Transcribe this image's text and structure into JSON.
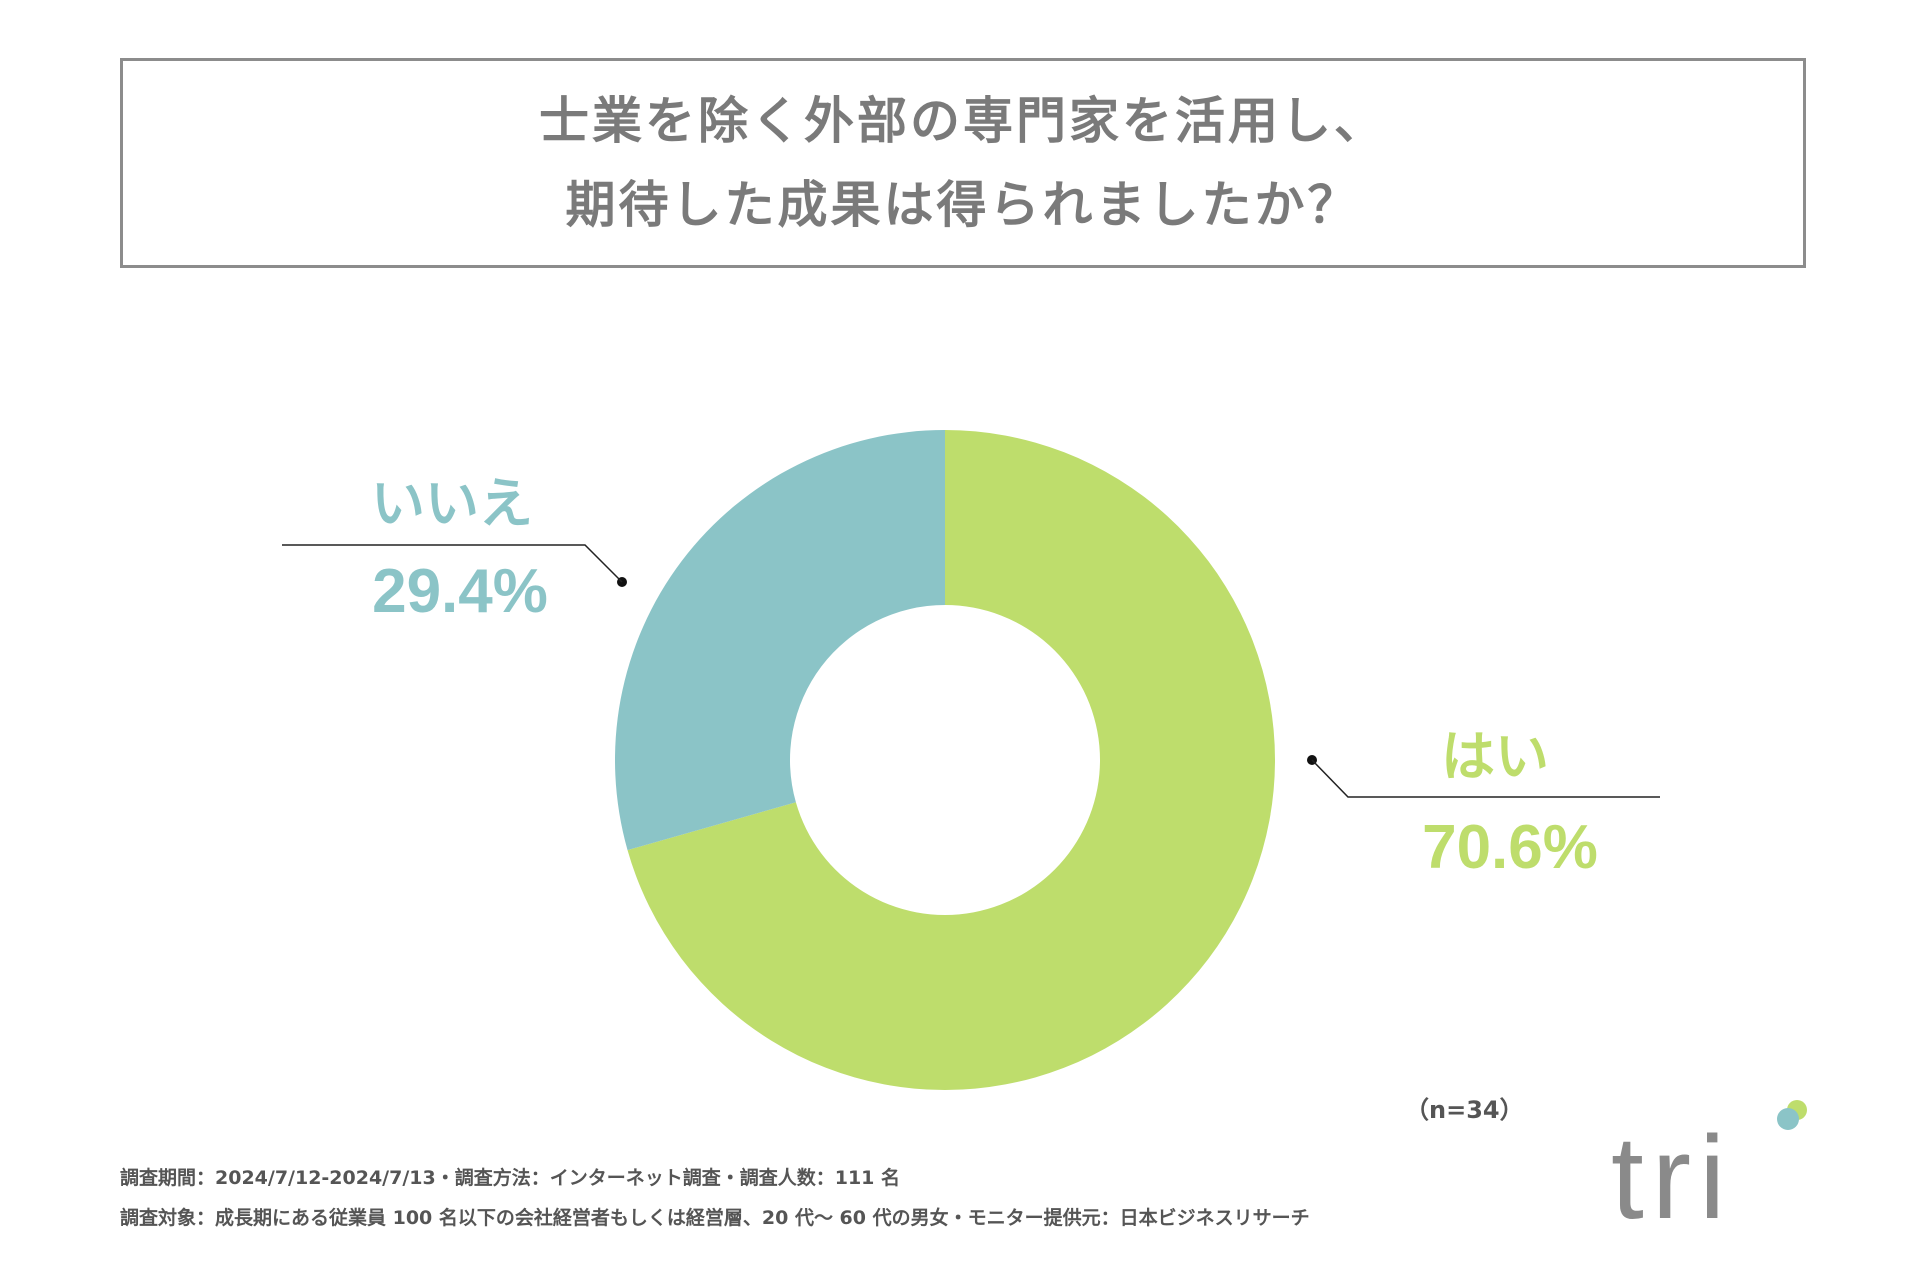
{
  "title": {
    "line1": "士業を除く外部の専門家を活用し、",
    "line2": "期待した成果は得られましたか？"
  },
  "chart_data": {
    "type": "pie",
    "donut": true,
    "categories": [
      "はい",
      "いいえ"
    ],
    "values": [
      70.6,
      29.4
    ],
    "value_labels": [
      "70.6%",
      "29.4%"
    ],
    "colors": [
      "#bedd6c",
      "#8bc4c7"
    ]
  },
  "sample_size": "（n=34）",
  "footnotes": {
    "line1": "調査期間：2024/7/12-2024/7/13・調査方法：インターネット調査・調査人数：111 名",
    "line2": "調査対象：成長期にある従業員 100 名以下の会社経営者もしくは経営層、20 代～ 60 代の男女・モニター提供元：日本ビジネスリサーチ"
  },
  "logo": {
    "text": "tri",
    "colors": {
      "text": "#8a8a8a",
      "dot_blue": "#8bc4c7",
      "dot_green": "#bedd6c"
    }
  }
}
